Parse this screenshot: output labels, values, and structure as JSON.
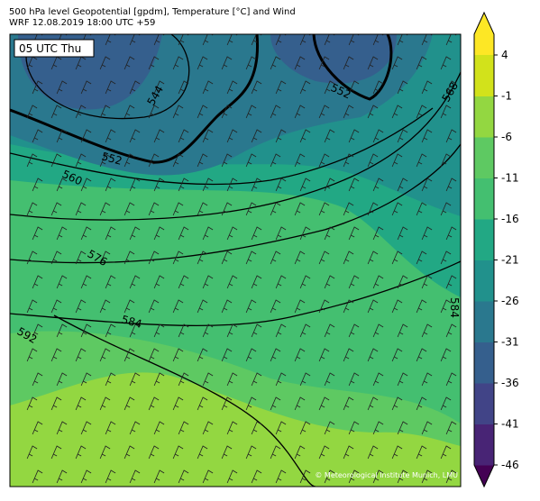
{
  "header": {
    "title": "500 hPa level Geopotential [gpdm], Temperature [°C] and Wind",
    "subtitle": "WRF 12.08.2019 18:00 UTC +59"
  },
  "time_label": "05 UTC Thu",
  "contour_labels": [
    "544",
    "552",
    "552",
    "560",
    "568",
    "576",
    "584",
    "592",
    "584"
  ],
  "colorbar": {
    "ticks": [
      4,
      -1,
      -6,
      -11,
      -16,
      -21,
      -26,
      -31,
      -36,
      -41,
      -46
    ],
    "colors": [
      "#440154",
      "#482475",
      "#414487",
      "#355f8d",
      "#2a788e",
      "#21918c",
      "#22a884",
      "#44bf70",
      "#5ec962",
      "#93d741",
      "#d2e21b",
      "#fde725"
    ]
  },
  "copyright": "© Meteorological Institute Munich, LMU"
}
